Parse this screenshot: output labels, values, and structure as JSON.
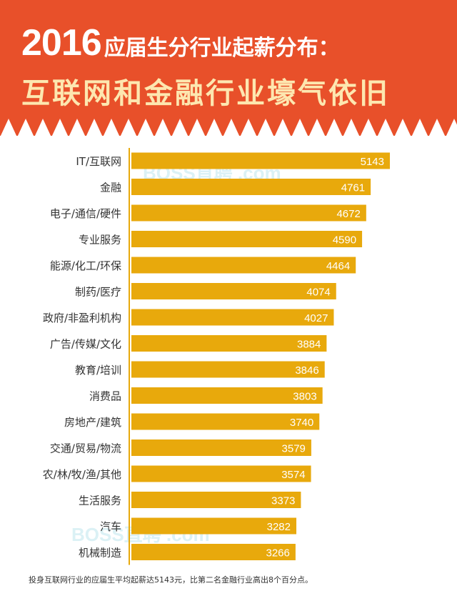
{
  "colors": {
    "header_bg": "#e8502a",
    "title_white": "#ffffff",
    "title_cream": "#fde7b0",
    "bar": "#e8a90c",
    "axis": "#e8a90c",
    "label_text": "#333333",
    "value_text": "#ffffff"
  },
  "header": {
    "year": "2016",
    "title_line1": "应届生分行业起薪分布：",
    "title_line2": "互联网和金融行业壕气依旧"
  },
  "watermark": "BOSS直聘 .com",
  "chart_data": {
    "type": "bar",
    "orientation": "horizontal",
    "title": "2016应届生分行业起薪分布：互联网和金融行业壕气依旧",
    "xlabel": "",
    "ylabel": "",
    "categories": [
      "IT/互联网",
      "金融",
      "电子/通信/硬件",
      "专业服务",
      "能源/化工/环保",
      "制药/医疗",
      "政府/非盈利机构",
      "广告/传媒/文化",
      "教育/培训",
      "消费品",
      "房地产/建筑",
      "交通/贸易/物流",
      "农/林/牧/渔/其他",
      "生活服务",
      "汽车",
      "机械制造"
    ],
    "values": [
      5143,
      4761,
      4672,
      4590,
      4464,
      4074,
      4027,
      3884,
      3846,
      3803,
      3740,
      3579,
      3574,
      3373,
      3282,
      3266
    ],
    "data_labels": true,
    "grid": false,
    "legend": "none"
  },
  "footnote": "投身互联网行业的应届生平均起薪达5143元，比第二名金融行业高出8个百分点。"
}
